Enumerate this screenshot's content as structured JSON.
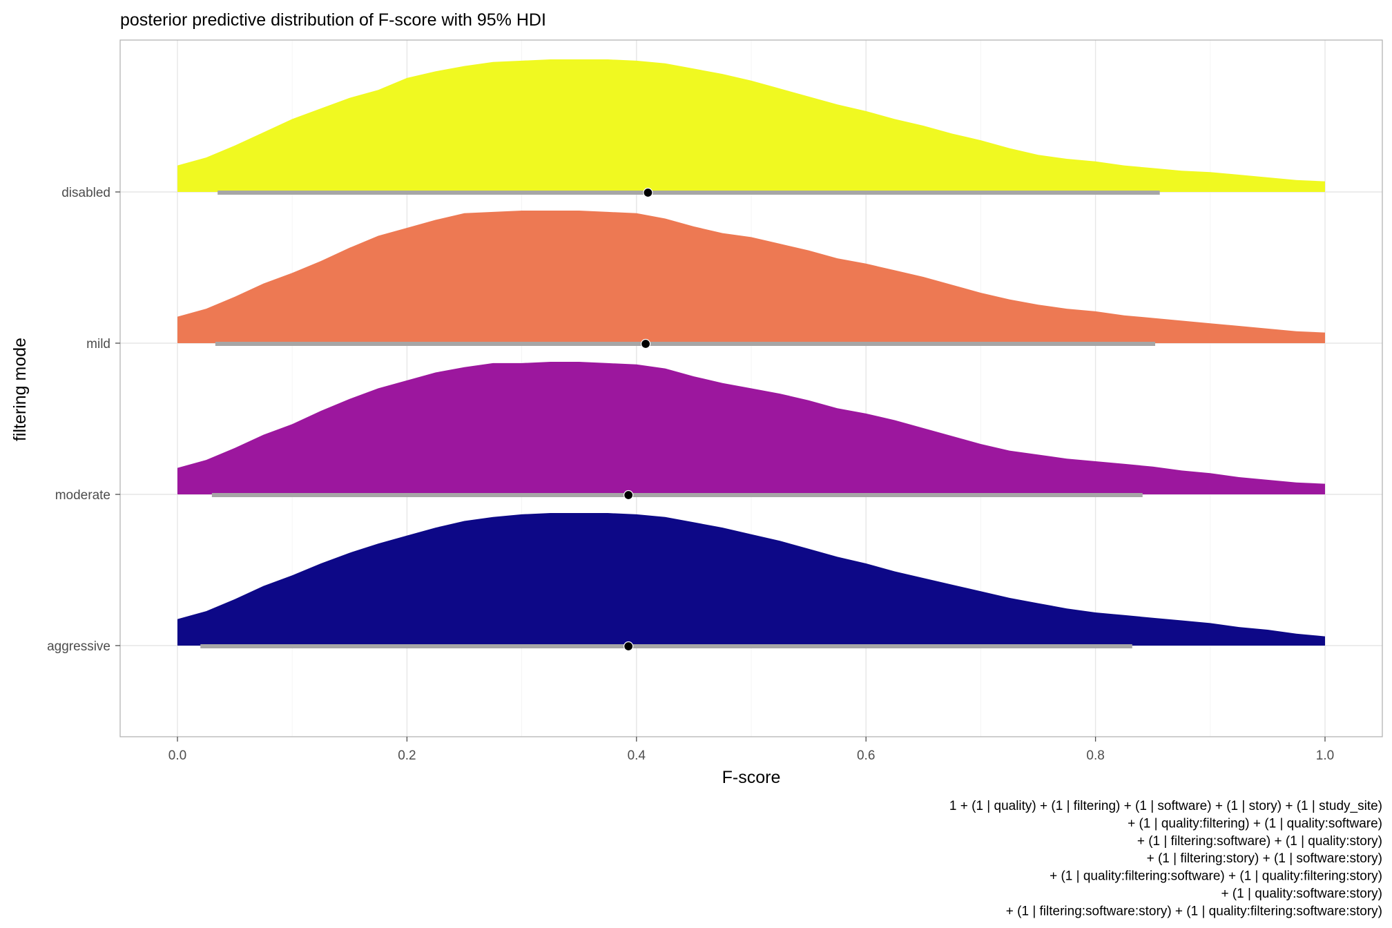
{
  "chart_data": {
    "type": "area",
    "subtype": "ridgeline-density-with-interval",
    "title": "posterior predictive distribution of F-score with 95% HDI",
    "xlabel": "F-score",
    "ylabel": "filtering mode",
    "xlim": [
      -0.05,
      1.05
    ],
    "x_ticks": [
      0.0,
      0.2,
      0.4,
      0.6,
      0.8,
      1.0
    ],
    "x_tick_labels": [
      "0.0",
      "0.2",
      "0.4",
      "0.6",
      "0.8",
      "1.0"
    ],
    "grid": true,
    "legend": "none",
    "density_x": [
      0.0,
      0.025,
      0.05,
      0.075,
      0.1,
      0.125,
      0.15,
      0.175,
      0.2,
      0.225,
      0.25,
      0.275,
      0.3,
      0.325,
      0.35,
      0.375,
      0.4,
      0.425,
      0.45,
      0.475,
      0.5,
      0.525,
      0.55,
      0.575,
      0.6,
      0.625,
      0.65,
      0.675,
      0.7,
      0.725,
      0.75,
      0.775,
      0.8,
      0.825,
      0.85,
      0.875,
      0.9,
      0.925,
      0.95,
      0.975,
      1.0
    ],
    "series": [
      {
        "name": "disabled",
        "color": "#F0F921",
        "hdi": [
          0.035,
          0.856
        ],
        "median": 0.41,
        "density": [
          0.2,
          0.26,
          0.35,
          0.45,
          0.55,
          0.63,
          0.71,
          0.77,
          0.86,
          0.91,
          0.95,
          0.98,
          0.99,
          1.0,
          1.0,
          1.0,
          0.99,
          0.97,
          0.93,
          0.89,
          0.84,
          0.78,
          0.72,
          0.66,
          0.61,
          0.55,
          0.5,
          0.44,
          0.39,
          0.33,
          0.28,
          0.25,
          0.23,
          0.2,
          0.18,
          0.16,
          0.15,
          0.13,
          0.11,
          0.09,
          0.08
        ]
      },
      {
        "name": "mild",
        "color": "#ED7953",
        "hdi": [
          0.033,
          0.852
        ],
        "median": 0.408,
        "density": [
          0.2,
          0.26,
          0.35,
          0.45,
          0.53,
          0.62,
          0.72,
          0.81,
          0.87,
          0.93,
          0.98,
          0.99,
          1.0,
          1.0,
          1.0,
          0.99,
          0.98,
          0.94,
          0.88,
          0.83,
          0.8,
          0.75,
          0.7,
          0.64,
          0.6,
          0.55,
          0.5,
          0.44,
          0.38,
          0.33,
          0.29,
          0.26,
          0.24,
          0.21,
          0.19,
          0.17,
          0.15,
          0.13,
          0.11,
          0.09,
          0.08
        ]
      },
      {
        "name": "moderate",
        "color": "#9C179E",
        "hdi": [
          0.03,
          0.841
        ],
        "median": 0.393,
        "density": [
          0.2,
          0.26,
          0.35,
          0.45,
          0.53,
          0.63,
          0.72,
          0.8,
          0.86,
          0.92,
          0.96,
          0.99,
          0.99,
          1.0,
          1.0,
          0.99,
          0.98,
          0.95,
          0.89,
          0.84,
          0.8,
          0.76,
          0.71,
          0.65,
          0.61,
          0.56,
          0.5,
          0.44,
          0.38,
          0.33,
          0.3,
          0.27,
          0.25,
          0.23,
          0.21,
          0.18,
          0.16,
          0.13,
          0.11,
          0.09,
          0.08
        ]
      },
      {
        "name": "aggressive",
        "color": "#0D0887",
        "hdi": [
          0.02,
          0.832
        ],
        "median": 0.393,
        "density": [
          0.2,
          0.26,
          0.35,
          0.45,
          0.53,
          0.62,
          0.7,
          0.77,
          0.83,
          0.89,
          0.94,
          0.97,
          0.99,
          1.0,
          1.0,
          1.0,
          0.99,
          0.97,
          0.93,
          0.89,
          0.84,
          0.79,
          0.73,
          0.67,
          0.62,
          0.56,
          0.51,
          0.46,
          0.41,
          0.36,
          0.32,
          0.28,
          0.25,
          0.23,
          0.21,
          0.19,
          0.17,
          0.14,
          0.12,
          0.09,
          0.07
        ]
      }
    ],
    "caption": [
      "1 + (1 | quality) + (1 | filtering) + (1 | software) + (1 | story) + (1 | study_site)",
      "+ (1 | quality:filtering) + (1 | quality:software)",
      "+ (1 | filtering:software) + (1 | quality:story)",
      "+ (1 | filtering:story) + (1 | software:story)",
      "+ (1 | quality:filtering:software) + (1 | quality:filtering:story)",
      "+ (1 | quality:software:story)",
      "+ (1 | filtering:software:story) + (1 | quality:filtering:software:story)"
    ]
  }
}
